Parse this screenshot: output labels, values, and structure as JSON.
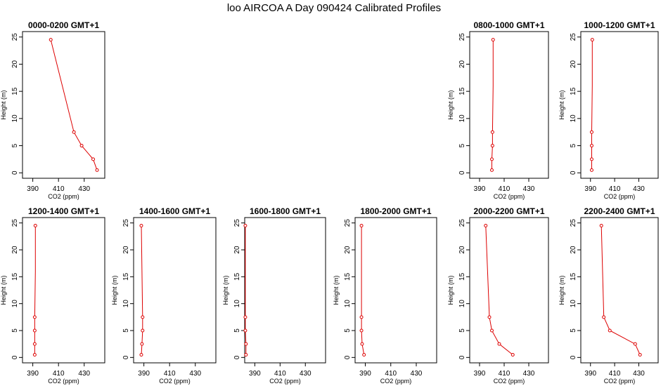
{
  "figure": {
    "title": "loo AIRCOA A  Day 090424  Calibrated Profiles"
  },
  "chart_data": [
    {
      "type": "line",
      "title": "0000-0200 GMT+1",
      "xlabel": "CO2 (ppm)",
      "ylabel": "Height (m)",
      "xlim": [
        382,
        446
      ],
      "ylim": [
        -1,
        26
      ],
      "xticks": [
        390,
        410,
        430
      ],
      "yticks": [
        0,
        5,
        10,
        15,
        20,
        25
      ],
      "x": [
        404,
        422,
        428,
        437,
        440
      ],
      "y": [
        24.5,
        7.5,
        5,
        2.5,
        0.5
      ],
      "color": "#dd0000"
    },
    {
      "type": "line",
      "title": "0800-1000 GMT+1",
      "xlabel": "CO2 (ppm)",
      "ylabel": "Height (m)",
      "xlim": [
        382,
        446
      ],
      "ylim": [
        -1,
        26
      ],
      "xticks": [
        390,
        410,
        430
      ],
      "yticks": [
        0,
        5,
        10,
        15,
        20,
        25
      ],
      "x": [
        401,
        401,
        400.5,
        400.5,
        400,
        400
      ],
      "y": [
        24.5,
        16,
        7.5,
        5,
        2.5,
        0.5
      ],
      "color": "#dd0000"
    },
    {
      "type": "line",
      "title": "1000-1200 GMT+1",
      "xlabel": "CO2 (ppm)",
      "ylabel": "Height (m)",
      "xlim": [
        382,
        446
      ],
      "ylim": [
        -1,
        26
      ],
      "xticks": [
        390,
        410,
        430
      ],
      "yticks": [
        0,
        5,
        10,
        15,
        20,
        25
      ],
      "x": [
        391.5,
        391.5,
        391,
        391,
        391,
        391
      ],
      "y": [
        24.5,
        16,
        7.5,
        5,
        2.5,
        0.5
      ],
      "color": "#dd0000"
    },
    {
      "type": "line",
      "title": "1200-1400 GMT+1",
      "xlabel": "CO2 (ppm)",
      "ylabel": "Height (m)",
      "xlim": [
        382,
        446
      ],
      "ylim": [
        -1,
        26
      ],
      "xticks": [
        390,
        410,
        430
      ],
      "yticks": [
        0,
        5,
        10,
        15,
        20,
        25
      ],
      "x": [
        392,
        392,
        391.5,
        391.5,
        391.5,
        391.5
      ],
      "y": [
        24.5,
        16,
        7.5,
        5,
        2.5,
        0.5
      ],
      "color": "#dd0000"
    },
    {
      "type": "line",
      "title": "1400-1600 GMT+1",
      "xlabel": "CO2 (ppm)",
      "ylabel": "Height (m)",
      "xlim": [
        382,
        446
      ],
      "ylim": [
        -1,
        26
      ],
      "xticks": [
        390,
        410,
        430
      ],
      "yticks": [
        0,
        5,
        10,
        15,
        20,
        25
      ],
      "x": [
        388,
        388.5,
        389,
        389,
        388.5,
        388
      ],
      "y": [
        24.5,
        16,
        7.5,
        5,
        2.5,
        0.5
      ],
      "color": "#dd0000"
    },
    {
      "type": "line",
      "title": "1600-1800 GMT+1",
      "xlabel": "CO2 (ppm)",
      "ylabel": "Height (m)",
      "xlim": [
        382,
        446
      ],
      "ylim": [
        -1,
        26
      ],
      "xticks": [
        390,
        410,
        430
      ],
      "yticks": [
        0,
        5,
        10,
        15,
        20,
        25
      ],
      "x": [
        382.5,
        382.5,
        382.5,
        382.5,
        383,
        383
      ],
      "y": [
        24.5,
        16,
        7.5,
        5,
        2.5,
        0.5
      ],
      "color": "#dd0000"
    },
    {
      "type": "line",
      "title": "1800-2000 GMT+1",
      "xlabel": "CO2 (ppm)",
      "ylabel": "Height (m)",
      "xlim": [
        382,
        446
      ],
      "ylim": [
        -1,
        26
      ],
      "xticks": [
        390,
        410,
        430
      ],
      "yticks": [
        0,
        5,
        10,
        15,
        20,
        25
      ],
      "x": [
        387,
        387,
        387,
        387,
        387.5,
        389
      ],
      "y": [
        24.5,
        16,
        7.5,
        5,
        2.5,
        0.5
      ],
      "color": "#dd0000"
    },
    {
      "type": "line",
      "title": "2000-2200 GMT+1",
      "xlabel": "CO2 (ppm)",
      "ylabel": "Height (m)",
      "xlim": [
        382,
        446
      ],
      "ylim": [
        -1,
        26
      ],
      "xticks": [
        390,
        410,
        430
      ],
      "yticks": [
        0,
        5,
        10,
        15,
        20,
        25
      ],
      "x": [
        395,
        398,
        400,
        406,
        417
      ],
      "y": [
        24.5,
        7.5,
        5,
        2.5,
        0.5
      ],
      "color": "#dd0000"
    },
    {
      "type": "line",
      "title": "2200-2400 GMT+1",
      "xlabel": "CO2 (ppm)",
      "ylabel": "Height (m)",
      "xlim": [
        382,
        446
      ],
      "ylim": [
        -1,
        26
      ],
      "xticks": [
        390,
        410,
        430
      ],
      "yticks": [
        0,
        5,
        10,
        15,
        20,
        25
      ],
      "x": [
        399,
        401,
        406,
        427,
        431
      ],
      "y": [
        24.5,
        7.5,
        5,
        2.5,
        0.5
      ],
      "color": "#dd0000"
    }
  ]
}
